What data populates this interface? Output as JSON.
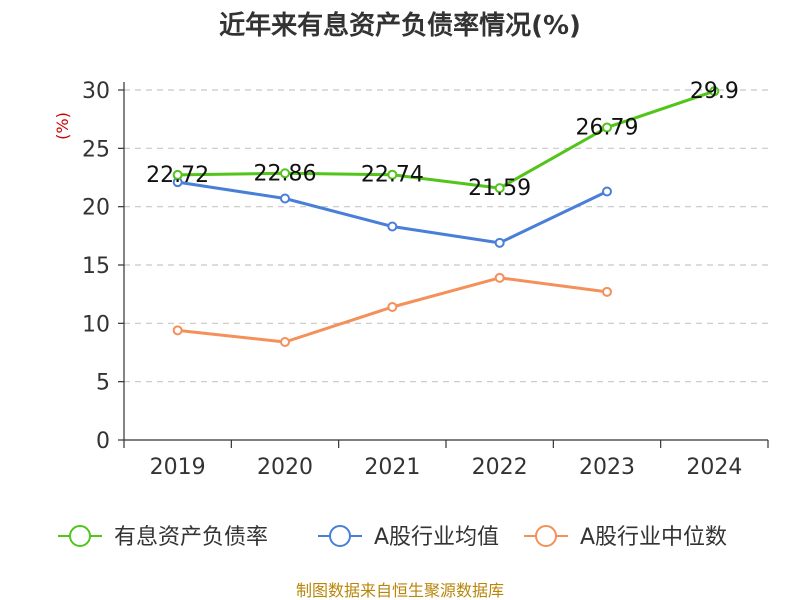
{
  "chart_data": {
    "type": "line",
    "title": "近年来有息资产负债率情况(%)",
    "ylabel": "(%)",
    "categories": [
      "2019",
      "2020",
      "2021",
      "2022",
      "2023",
      "2024"
    ],
    "ylim": [
      0,
      30
    ],
    "yticks": [
      "0",
      "5",
      "10",
      "15",
      "20",
      "25",
      "30"
    ],
    "grid": true,
    "legend_position": "bottom",
    "series": [
      {
        "name": "有息资产负债率",
        "color": "#52c41a",
        "values": [
          22.72,
          22.86,
          22.74,
          21.59,
          26.79,
          29.9
        ],
        "labels": [
          "22.72",
          "22.86",
          "22.74",
          "21.59",
          "26.79",
          "29.9"
        ]
      },
      {
        "name": "A股行业均值",
        "color": "#4a7fd8",
        "values": [
          22.1,
          20.7,
          18.3,
          16.9,
          21.3,
          null
        ]
      },
      {
        "name": "A股行业中位数",
        "color": "#f4905a",
        "values": [
          9.4,
          8.4,
          11.4,
          13.9,
          12.7,
          null
        ]
      }
    ],
    "source": "制图数据来自恒生聚源数据库"
  }
}
